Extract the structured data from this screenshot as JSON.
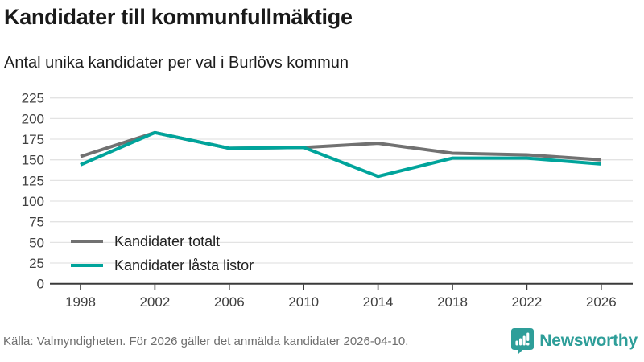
{
  "header": {
    "title": "Kandidater till kommunfullmäktige",
    "subtitle": "Antal unika kandidater per val i Burlövs kommun"
  },
  "chart_data": {
    "type": "line",
    "title": "Kandidater till kommunfullmäktige",
    "subtitle": "Antal unika kandidater per val i Burlövs kommun",
    "categories": [
      "1998",
      "2002",
      "2006",
      "2010",
      "2014",
      "2018",
      "2022",
      "2026"
    ],
    "series": [
      {
        "name": "Kandidater totalt",
        "color": "#717171",
        "values": [
          154,
          183,
          164,
          165,
          170,
          158,
          156,
          150
        ]
      },
      {
        "name": "Kandidater låsta listor",
        "color": "#00a49b",
        "values": [
          144,
          183,
          164,
          165,
          130,
          152,
          152,
          145
        ]
      }
    ],
    "ylim": [
      0,
      225
    ],
    "y_ticks": [
      0,
      25,
      50,
      75,
      100,
      125,
      150,
      175,
      200,
      225
    ],
    "xlabel": "",
    "ylabel": "",
    "grid": "horizontal",
    "legend_position": "inside-bottom-left"
  },
  "footer": {
    "source": "Källa: Valmyndigheten. För 2026 gäller det anmälda kandidater 2026-04-10.",
    "brand": "Newsworthy"
  },
  "colors": {
    "series_gray": "#717171",
    "series_teal": "#00a49b",
    "brand_teal": "#2e9e99",
    "gridline": "#e3e3e3",
    "axis": "#3a3a3a",
    "tick_label": "#3f3f3f"
  }
}
